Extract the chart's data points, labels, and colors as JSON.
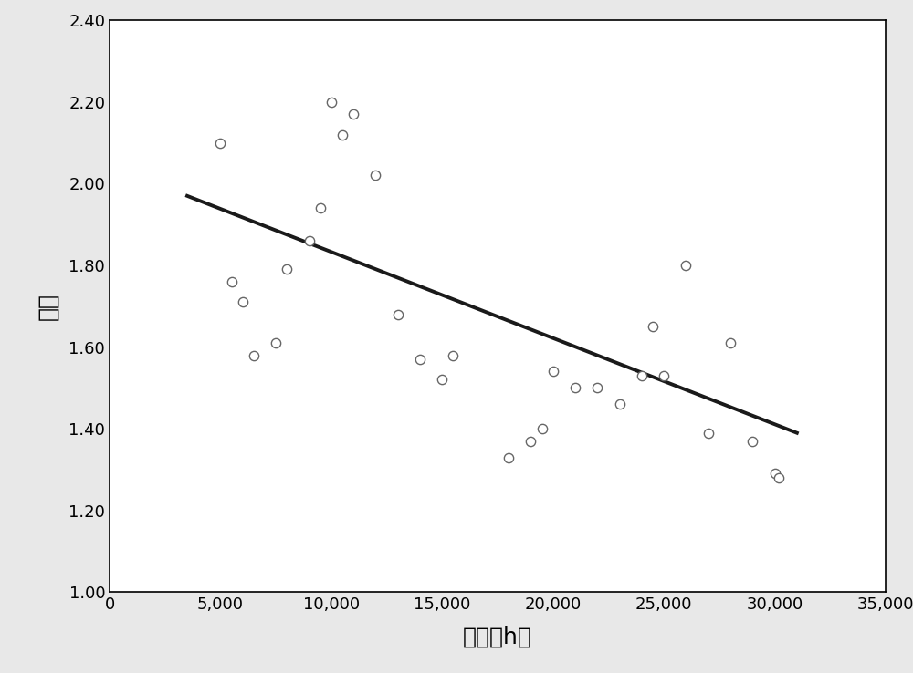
{
  "scatter_x": [
    5000,
    5500,
    6000,
    6500,
    7500,
    8000,
    9000,
    9500,
    10000,
    10500,
    11000,
    12000,
    13000,
    14000,
    15000,
    15500,
    18000,
    19000,
    19500,
    20000,
    21000,
    22000,
    23000,
    24000,
    24500,
    25000,
    26000,
    27000,
    28000,
    29000,
    30000,
    30200
  ],
  "scatter_y": [
    2.1,
    1.76,
    1.71,
    1.58,
    1.61,
    1.79,
    1.86,
    1.94,
    2.2,
    2.12,
    2.17,
    2.02,
    1.68,
    1.57,
    1.52,
    1.58,
    1.33,
    1.37,
    1.4,
    1.54,
    1.5,
    1.5,
    1.46,
    1.53,
    1.65,
    1.53,
    1.8,
    1.39,
    1.61,
    1.37,
    1.29,
    1.28
  ],
  "line_x": [
    3500,
    31000
  ],
  "line_y": [
    1.97,
    1.39
  ],
  "xlabel": "时间（h）",
  "ylabel": "潜能",
  "xlim": [
    0,
    35000
  ],
  "ylim": [
    1.0,
    2.4
  ],
  "xticks": [
    0,
    5000,
    10000,
    15000,
    20000,
    25000,
    30000,
    35000
  ],
  "yticks": [
    1.0,
    1.2,
    1.4,
    1.6,
    1.8,
    2.0,
    2.2,
    2.4
  ],
  "scatter_color": "white",
  "scatter_edgecolor": "#666666",
  "line_color": "#1a1a1a",
  "background_color": "#e8e8e8",
  "plot_background": "white",
  "xlabel_fontsize": 18,
  "ylabel_fontsize": 18,
  "tick_fontsize": 13,
  "scatter_size": 55,
  "scatter_linewidth": 1.0,
  "line_width": 2.8
}
